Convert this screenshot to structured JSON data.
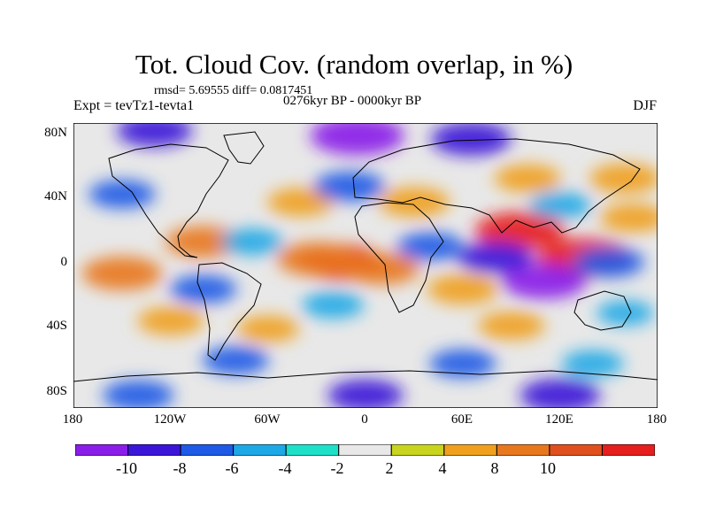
{
  "header": {
    "title": "Tot. Cloud Cov. (random overlap, in %)",
    "stats": "rmsd= 5.69555 diff= 0.0817451",
    "period": "0276kyr BP - 0000kyr BP",
    "experiment": "Expt = tevTz1-tevta1",
    "season": "DJF"
  },
  "axes": {
    "y_ticks": [
      "80N",
      "40N",
      "0",
      "40S",
      "80S"
    ],
    "x_ticks": [
      "180",
      "120W",
      "60W",
      "0",
      "60E",
      "120E",
      "180"
    ]
  },
  "colorbar": {
    "colors": [
      "#8a1ee8",
      "#3c16d8",
      "#1e5ae6",
      "#1ea8e6",
      "#1ee0c8",
      "#e8e8e8",
      "#c8d41e",
      "#f0a01e",
      "#e8781e",
      "#e0501e",
      "#e61e1e"
    ],
    "labels": [
      "-10",
      "-8",
      "-6",
      "-4",
      "-2",
      "2",
      "4",
      "8",
      "10"
    ]
  },
  "map_data": {
    "projection": "cylindrical-equidistant",
    "lon_range": [
      -180,
      180
    ],
    "lat_range": [
      -90,
      90
    ],
    "field": "cloud cover difference (%)",
    "features": [
      {
        "lon": 135,
        "lat": 5,
        "value": 12
      },
      {
        "lon": 95,
        "lat": 22,
        "value": 11
      },
      {
        "lon": -15,
        "lat": 2,
        "value": 10
      },
      {
        "lon": -30,
        "lat": 4,
        "value": 9
      },
      {
        "lon": 10,
        "lat": -2,
        "value": 8
      },
      {
        "lon": 60,
        "lat": -15,
        "value": 7
      },
      {
        "lon": -150,
        "lat": -5,
        "value": 9
      },
      {
        "lon": -100,
        "lat": 15,
        "value": 8
      },
      {
        "lon": 165,
        "lat": 30,
        "value": 6
      },
      {
        "lon": 30,
        "lat": 40,
        "value": 7
      },
      {
        "lon": -40,
        "lat": 40,
        "value": 6
      },
      {
        "lon": 100,
        "lat": 55,
        "value": 6
      },
      {
        "lon": 160,
        "lat": 55,
        "value": 7
      },
      {
        "lon": -120,
        "lat": -35,
        "value": 6
      },
      {
        "lon": -60,
        "lat": -40,
        "value": 5
      },
      {
        "lon": 90,
        "lat": -38,
        "value": 6
      },
      {
        "lon": 110,
        "lat": -10,
        "value": -10
      },
      {
        "lon": 80,
        "lat": 5,
        "value": -8
      },
      {
        "lon": 150,
        "lat": 2,
        "value": -7
      },
      {
        "lon": -5,
        "lat": 82,
        "value": -12
      },
      {
        "lon": -130,
        "lat": 85,
        "value": -8
      },
      {
        "lon": 65,
        "lat": 80,
        "value": -9
      },
      {
        "lon": -10,
        "lat": 50,
        "value": -7
      },
      {
        "lon": -150,
        "lat": 45,
        "value": -6
      },
      {
        "lon": 120,
        "lat": 38,
        "value": -5
      },
      {
        "lon": 40,
        "lat": 12,
        "value": -6
      },
      {
        "lon": -70,
        "lat": 15,
        "value": -5
      },
      {
        "lon": -100,
        "lat": -15,
        "value": -6
      },
      {
        "lon": -20,
        "lat": -25,
        "value": -5
      },
      {
        "lon": -80,
        "lat": -60,
        "value": -6
      },
      {
        "lon": 60,
        "lat": -62,
        "value": -6
      },
      {
        "lon": 140,
        "lat": -62,
        "value": -5
      },
      {
        "lon": 0,
        "lat": -82,
        "value": -8
      },
      {
        "lon": 120,
        "lat": -82,
        "value": -9
      },
      {
        "lon": -140,
        "lat": -82,
        "value": -7
      },
      {
        "lon": 160,
        "lat": -30,
        "value": -4
      }
    ]
  }
}
